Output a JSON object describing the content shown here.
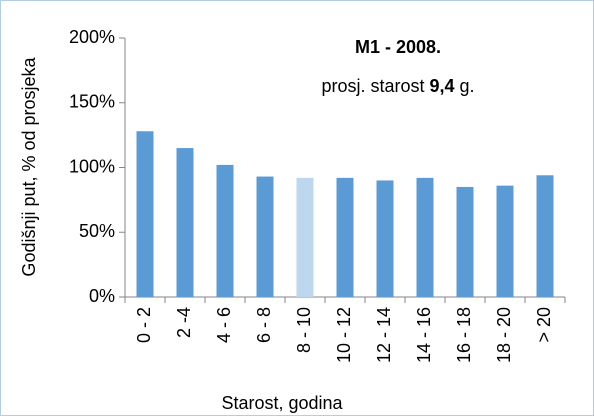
{
  "chart_data": {
    "type": "bar",
    "annotation_title": "M1 - 2008.",
    "annotation_parts": [
      "prosj. starost ",
      "9,4",
      " g."
    ],
    "y_label": "Godišnji put, % od prosjeka",
    "x_label": "Starost, godina",
    "categories": [
      "0 - 2",
      "2 -4",
      "4 - 6",
      "6 - 8",
      "8 - 10",
      "10 - 12",
      "12 - 14",
      "14 - 16",
      "16 - 18",
      "18 - 20",
      "> 20"
    ],
    "values": [
      128,
      115,
      102,
      93,
      92,
      92,
      90,
      92,
      85,
      86,
      94
    ],
    "colors": [
      "#5b9bd5",
      "#5b9bd5",
      "#5b9bd5",
      "#5b9bd5",
      "#bdd7ee",
      "#5b9bd5",
      "#5b9bd5",
      "#5b9bd5",
      "#5b9bd5",
      "#5b9bd5",
      "#5b9bd5"
    ],
    "ylim": [
      0,
      200
    ],
    "yticks": [
      {
        "value": 0,
        "label": "0%"
      },
      {
        "value": 50,
        "label": "50%"
      },
      {
        "value": 100,
        "label": "100%"
      },
      {
        "value": 150,
        "label": "150%"
      },
      {
        "value": 200,
        "label": "200%"
      }
    ],
    "grid": false
  }
}
